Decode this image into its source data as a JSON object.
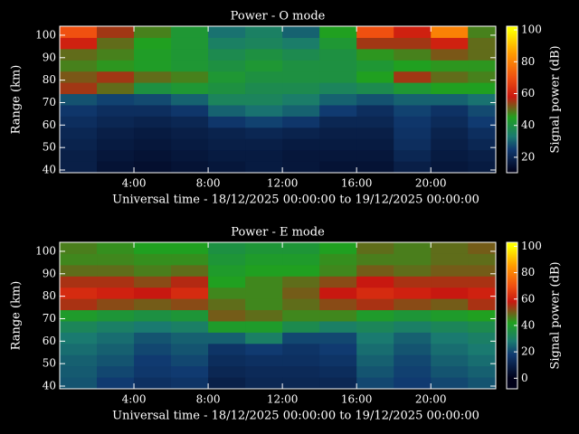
{
  "chart_data": [
    {
      "type": "heatmap",
      "title": "Power - O mode",
      "y_label": "Range (km)",
      "x_label": "Universal time - 18/12/2025 00:00:00 to 19/12/2025 00:00:00",
      "xlim": [
        0,
        23.5
      ],
      "ylim": [
        38.8,
        104
      ],
      "xticks": [
        {
          "value": 4,
          "label": "4:00"
        },
        {
          "value": 8,
          "label": "8:00"
        },
        {
          "value": 12,
          "label": "12:00"
        },
        {
          "value": 16,
          "label": "16:00"
        },
        {
          "value": 20,
          "label": "20:00"
        }
      ],
      "yticks": [
        40,
        50,
        60,
        70,
        80,
        90,
        100
      ],
      "xbins": [
        0,
        2,
        4,
        6,
        8,
        10,
        12,
        14,
        16,
        18,
        20,
        22,
        23.5
      ],
      "ybins": [
        39,
        44,
        49,
        54,
        59,
        64,
        69,
        74,
        79,
        84,
        89,
        94,
        99,
        104
      ],
      "values": [
        [
          18,
          15,
          14,
          15,
          16,
          17,
          16,
          15,
          15,
          18,
          16,
          17
        ],
        [
          18,
          16,
          15,
          16,
          17,
          17,
          16,
          16,
          16,
          20,
          17,
          18
        ],
        [
          19,
          17,
          16,
          17,
          18,
          18,
          17,
          17,
          17,
          22,
          18,
          20
        ],
        [
          20,
          18,
          17,
          18,
          19,
          20,
          19,
          18,
          18,
          23,
          19,
          22
        ],
        [
          22,
          20,
          19,
          20,
          24,
          26,
          24,
          20,
          20,
          24,
          21,
          25
        ],
        [
          24,
          22,
          22,
          24,
          30,
          32,
          30,
          25,
          22,
          26,
          23,
          27
        ],
        [
          28,
          26,
          27,
          30,
          36,
          36,
          34,
          30,
          28,
          30,
          30,
          32
        ],
        [
          55,
          50,
          40,
          42,
          40,
          38,
          38,
          36,
          38,
          42,
          45,
          45
        ],
        [
          52,
          55,
          50,
          48,
          42,
          40,
          40,
          40,
          45,
          55,
          50,
          48
        ],
        [
          48,
          46,
          44,
          42,
          40,
          42,
          40,
          40,
          42,
          45,
          46,
          46
        ],
        [
          50,
          48,
          44,
          42,
          38,
          40,
          38,
          40,
          46,
          48,
          52,
          50
        ],
        [
          60,
          50,
          45,
          42,
          35,
          36,
          34,
          42,
          55,
          55,
          60,
          50
        ],
        [
          70,
          55,
          48,
          42,
          32,
          35,
          30,
          45,
          70,
          60,
          80,
          48
        ]
      ],
      "colorbar": {
        "label": "Signal power (dB)",
        "lim": [
          10.3,
          102.3
        ],
        "ticks": [
          20,
          40,
          60,
          80,
          100
        ]
      },
      "colormap": [
        [
          10,
          "#000018"
        ],
        [
          25,
          "#103a70"
        ],
        [
          33,
          "#1a7a70"
        ],
        [
          45,
          "#20a020"
        ],
        [
          58,
          "#c81810"
        ],
        [
          70,
          "#f05010"
        ],
        [
          85,
          "#ff9a00"
        ],
        [
          100,
          "#ffff00"
        ]
      ]
    },
    {
      "type": "heatmap",
      "title": "Power - E mode",
      "y_label": "Range (km)",
      "x_label": "Universal time - 18/12/2025 00:00:00 to 19/12/2025 00:00:00",
      "xlim": [
        0,
        23.5
      ],
      "ylim": [
        38.8,
        104
      ],
      "xticks": [
        {
          "value": 4,
          "label": "4:00"
        },
        {
          "value": 8,
          "label": "8:00"
        },
        {
          "value": 12,
          "label": "12:00"
        },
        {
          "value": 16,
          "label": "16:00"
        },
        {
          "value": 20,
          "label": "20:00"
        }
      ],
      "yticks": [
        40,
        50,
        60,
        70,
        80,
        90,
        100
      ],
      "xbins": [
        0,
        2,
        4,
        6,
        8,
        10,
        12,
        14,
        16,
        18,
        20,
        22,
        23.5
      ],
      "ybins": [
        39,
        44,
        49,
        54,
        59,
        64,
        69,
        74,
        79,
        84,
        89,
        94,
        99,
        104
      ],
      "values": [
        [
          22,
          18,
          15,
          16,
          10,
          12,
          12,
          12,
          20,
          18,
          20,
          22
        ],
        [
          23,
          20,
          17,
          18,
          12,
          13,
          13,
          14,
          22,
          19,
          22,
          24
        ],
        [
          24,
          22,
          18,
          20,
          14,
          15,
          15,
          16,
          24,
          20,
          24,
          26
        ],
        [
          26,
          24,
          20,
          22,
          16,
          18,
          16,
          18,
          26,
          22,
          26,
          28
        ],
        [
          28,
          26,
          22,
          24,
          24,
          30,
          20,
          20,
          28,
          24,
          28,
          30
        ],
        [
          32,
          30,
          28,
          30,
          40,
          40,
          34,
          30,
          32,
          30,
          32,
          34
        ],
        [
          40,
          38,
          36,
          38,
          50,
          48,
          45,
          45,
          40,
          38,
          40,
          42
        ],
        [
          55,
          52,
          50,
          52,
          48,
          45,
          48,
          52,
          55,
          52,
          50,
          55
        ],
        [
          62,
          60,
          58,
          62,
          45,
          45,
          50,
          58,
          62,
          60,
          58,
          60
        ],
        [
          55,
          55,
          52,
          56,
          42,
          45,
          48,
          52,
          58,
          55,
          55,
          55
        ],
        [
          48,
          48,
          46,
          48,
          40,
          42,
          42,
          45,
          50,
          48,
          50,
          50
        ],
        [
          45,
          45,
          44,
          44,
          38,
          40,
          40,
          44,
          46,
          46,
          48,
          48
        ],
        [
          46,
          44,
          42,
          42,
          36,
          38,
          38,
          42,
          48,
          46,
          48,
          50
        ]
      ],
      "colorbar": {
        "label": "Signal power (dB)",
        "lim": [
          -8,
          103
        ],
        "ticks": [
          0,
          20,
          40,
          60,
          80,
          100
        ]
      },
      "colormap": [
        [
          0,
          "#000018"
        ],
        [
          18,
          "#103a70"
        ],
        [
          28,
          "#1a7a70"
        ],
        [
          42,
          "#20a020"
        ],
        [
          58,
          "#c81810"
        ],
        [
          70,
          "#f05010"
        ],
        [
          85,
          "#ff9a00"
        ],
        [
          100,
          "#ffff00"
        ]
      ]
    }
  ]
}
